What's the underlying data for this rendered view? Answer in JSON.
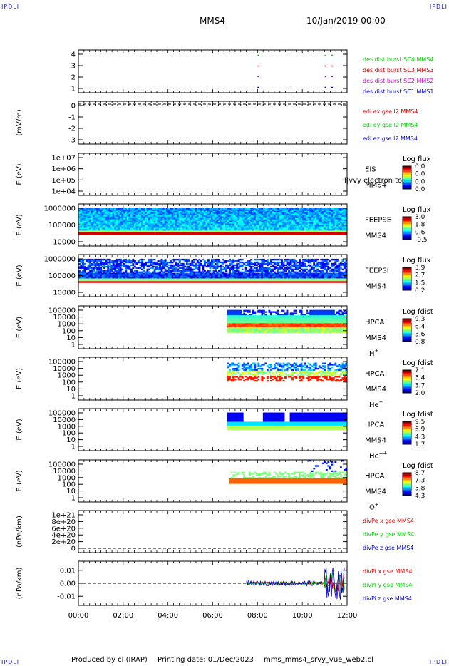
{
  "header": {
    "corner_tl": "IPDLI",
    "corner_tr": "IPDLI",
    "corner_bl": "IPDLI",
    "corner_br": "IPDLI",
    "spacecraft": "MMS4",
    "date": "10/Jan/2019 00:00"
  },
  "footer": {
    "produced_by": "Produced by cl (IRAP)",
    "printing_date": "Printing date: 01/Dec/2023",
    "filename": "mms_mms4_srvy_vue_web2.cl"
  },
  "colors": {
    "red": "#cc0000",
    "green": "#00cc00",
    "blue": "#0000cc",
    "magenta": "#cc00cc",
    "dark_blue": "#00008b"
  },
  "chart_data": [
    {
      "id": "burst",
      "type": "scatter",
      "ylabel": "",
      "yticks": [
        "4",
        "3",
        "2",
        "1"
      ],
      "ylim": [
        0.5,
        4.5
      ],
      "x_hours": [
        8.0,
        11.0,
        11.3
      ],
      "series": [
        {
          "name": "des dist burst SC1 MMS1",
          "color": "#0000cc",
          "y": 1
        },
        {
          "name": "des dist burst SC2 MMS2",
          "color": "#cc00cc",
          "y": 2
        },
        {
          "name": "des dist burst SC3 MMS3",
          "color": "#cc0000",
          "y": 3
        },
        {
          "name": "des dist burst SC4 MMS4",
          "color": "#00cc00",
          "y": 4
        }
      ]
    },
    {
      "id": "edi",
      "type": "line",
      "ylabel": "(mV/m)",
      "yticks": [
        "0",
        "-1",
        "-2",
        "-3"
      ],
      "ylim": [
        -3.6,
        0.1
      ],
      "series": [
        {
          "name": "edi ex gse l2 MMS4",
          "color": "#cc0000"
        },
        {
          "name": "edi ey gse l2 MMS4",
          "color": "#00cc00"
        },
        {
          "name": "edi ez gse l2 MMS4",
          "color": "#0000cc"
        }
      ]
    },
    {
      "id": "eis",
      "type": "heatmap",
      "ylabel": "E (eV)",
      "yticks": [
        "1e+07",
        "1e+06",
        "1e+05",
        "1e+04"
      ],
      "labels": [
        "EIS",
        "MMS4"
      ],
      "overlay": "l|vvy electron to",
      "colorbar": {
        "title": "Log flux",
        "ticks": [
          "0.0",
          "0.0",
          "0.0",
          "0.0"
        ]
      }
    },
    {
      "id": "feepse",
      "type": "heatmap",
      "ylabel": "E (eV)",
      "yticks": [
        "1000000",
        "100000",
        "10000"
      ],
      "labels": [
        "FEEPSE",
        "MMS4"
      ],
      "colorbar": {
        "title": "Log flux",
        "ticks": [
          "3.0",
          "1.8",
          "0.6",
          "-0.5"
        ]
      }
    },
    {
      "id": "feepsi",
      "type": "heatmap",
      "ylabel": "E (eV)",
      "yticks": [
        "1000000",
        "100000",
        "10000"
      ],
      "labels": [
        "FEEPSI",
        "MMS4"
      ],
      "colorbar": {
        "title": "Log flux",
        "ticks": [
          "3.9",
          "2.7",
          "1.5",
          "0.2"
        ]
      }
    },
    {
      "id": "hpca_h",
      "type": "heatmap",
      "ylabel": "E (eV)",
      "yticks": [
        "100000",
        "10000",
        "1000",
        "100",
        "10",
        "1"
      ],
      "labels": [
        "HPCA",
        "MMS4",
        "H"
      ],
      "sup": "+",
      "colorbar": {
        "title": "Log fdist",
        "ticks": [
          "9.3",
          "6.4",
          "3.6",
          "0.8"
        ]
      }
    },
    {
      "id": "hpca_he",
      "type": "heatmap",
      "ylabel": "E (eV)",
      "yticks": [
        "100000",
        "10000",
        "1000",
        "100",
        "10",
        "1"
      ],
      "labels": [
        "HPCA",
        "MMS4",
        "He"
      ],
      "sup": "+",
      "colorbar": {
        "title": "Log fdist",
        "ticks": [
          "7.1",
          "5.4",
          "3.7",
          "2.0"
        ]
      }
    },
    {
      "id": "hpca_he2",
      "type": "heatmap",
      "ylabel": "E (eV)",
      "yticks": [
        "100000",
        "10000",
        "1000",
        "100",
        "10",
        "1"
      ],
      "labels": [
        "HPCA",
        "MMS4",
        "He"
      ],
      "sup": "++",
      "colorbar": {
        "title": "Log fdist",
        "ticks": [
          "9.5",
          "6.9",
          "4.3",
          "1.7"
        ]
      }
    },
    {
      "id": "hpca_o",
      "type": "heatmap",
      "ylabel": "E (eV)",
      "yticks": [
        "100000",
        "10000",
        "1000",
        "100",
        "10",
        "1"
      ],
      "labels": [
        "HPCA",
        "MMS4",
        "O"
      ],
      "sup": "+",
      "colorbar": {
        "title": "Log fdist",
        "ticks": [
          "8.7",
          "7.3",
          "5.8",
          "4.3"
        ]
      }
    },
    {
      "id": "divpe",
      "type": "line",
      "ylabel": "(nPa/km)",
      "yticks": [
        "1e+21",
        "8e+20",
        "6e+20",
        "4e+20",
        "2e+20",
        "0"
      ],
      "series": [
        {
          "name": "divPe x gse MMS4",
          "color": "#cc0000"
        },
        {
          "name": "divPe y gse MMS4",
          "color": "#00cc00"
        },
        {
          "name": "divPe z gse MMS4",
          "color": "#0000cc"
        }
      ]
    },
    {
      "id": "divpi",
      "type": "line",
      "ylabel": "(nPa/km)",
      "yticks": [
        "0.01",
        "0.00",
        "-0.01"
      ],
      "ylim": [
        -0.017,
        0.017
      ],
      "series": [
        {
          "name": "divPi x gse MMS4",
          "color": "#cc0000"
        },
        {
          "name": "divPi y gse MMS4",
          "color": "#00cc00"
        },
        {
          "name": "divPi z gse MMS4",
          "color": "#0000cc"
        }
      ]
    }
  ],
  "xaxis": {
    "ticks": [
      "00:00",
      "02:00",
      "04:00",
      "06:00",
      "08:00",
      "10:00",
      "12:00"
    ],
    "xlim_hours": [
      0,
      12
    ]
  }
}
